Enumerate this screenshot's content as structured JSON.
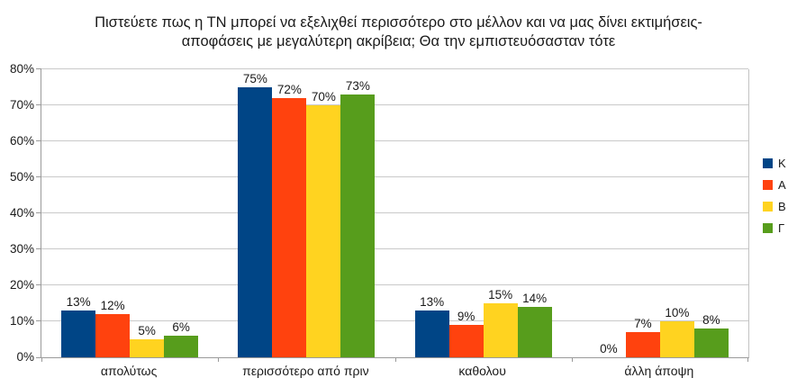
{
  "chart_data": {
    "type": "bar",
    "title": "Πιστεύετε πως η ΤΝ μπορεί να εξελιχθεί περισσότερο στο μέλλον και να μας δίνει εκτιμήσεις-αποφάσεις με μεγαλύτερη ακρίβεια; Θα την εμπιστευόσασταν τότε",
    "categories": [
      "απολύτως",
      "περισσότερο από πριν",
      "καθολου",
      "άλλη άποψη"
    ],
    "series": [
      {
        "name": "Κ",
        "color": "#004586",
        "values": [
          13,
          75,
          13,
          0
        ]
      },
      {
        "name": "Α",
        "color": "#FF420E",
        "values": [
          12,
          72,
          9,
          7
        ]
      },
      {
        "name": "Β",
        "color": "#FFD320",
        "values": [
          5,
          70,
          15,
          10
        ]
      },
      {
        "name": "Γ",
        "color": "#579D1C",
        "values": [
          6,
          73,
          14,
          8
        ]
      }
    ],
    "value_label_suffix": "%",
    "ylim": [
      0,
      80
    ],
    "ytick_step": 10,
    "ytick_labels": [
      "0%",
      "10%",
      "20%",
      "30%",
      "40%",
      "50%",
      "60%",
      "70%",
      "80%"
    ],
    "grid": "horizontal",
    "legend_position": "right"
  },
  "style_colors": {
    "background": "#ffffff",
    "grid": "#c9c9c9",
    "axis": "#9a9a9a",
    "text": "#1a1a1a"
  }
}
